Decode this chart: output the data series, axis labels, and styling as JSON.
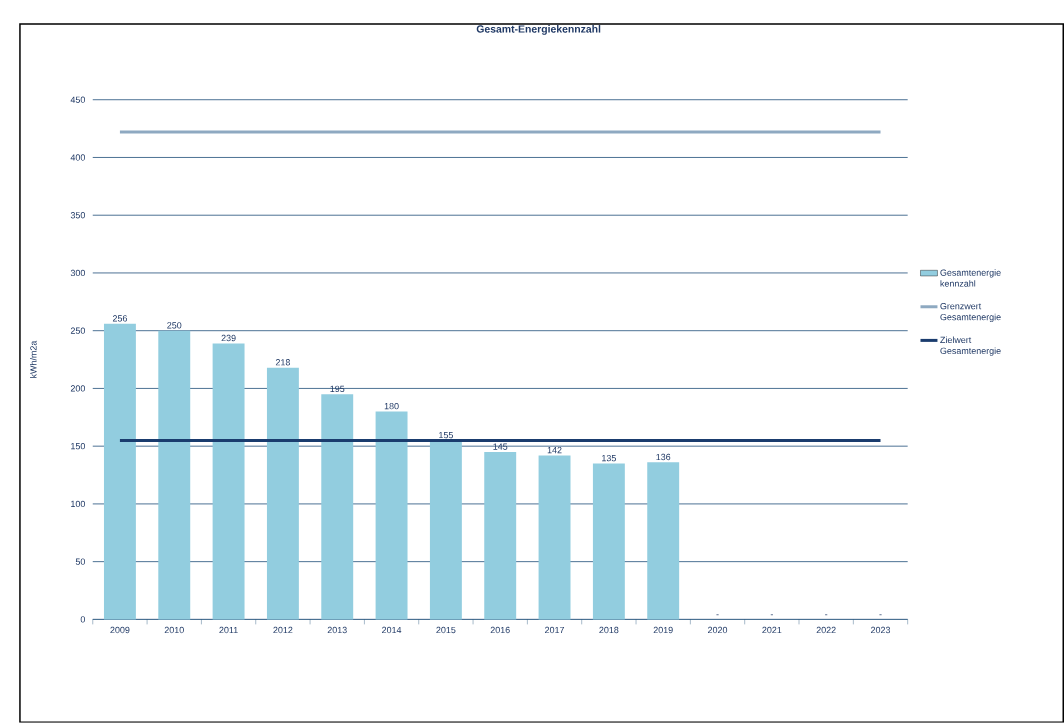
{
  "chart_data": {
    "type": "bar",
    "title": "Gesamt-Energiekennzahl",
    "ylabel": "kWh/m2a",
    "categories": [
      "2009",
      "2010",
      "2011",
      "2012",
      "2013",
      "2014",
      "2015",
      "2016",
      "2017",
      "2018",
      "2019",
      "2020",
      "2021",
      "2022",
      "2023"
    ],
    "series": [
      {
        "name": "Gesamtenergie kennzahl",
        "color": "#92cddf",
        "values": [
          256,
          250,
          239,
          218,
          195,
          180,
          155,
          145,
          142,
          135,
          136,
          null,
          null,
          null,
          null
        ],
        "value_labels": [
          "256",
          "250",
          "239",
          "218",
          "195",
          "180",
          "155",
          "145",
          "142",
          "135",
          "136",
          "-",
          "-",
          "-",
          "-"
        ]
      },
      {
        "name": "Grenzwert Gesamtenergie",
        "type": "line",
        "color": "#8ea9c1",
        "values": [
          422,
          422,
          422,
          422,
          422,
          422,
          422,
          422,
          422,
          422,
          422,
          422,
          422,
          422,
          422
        ]
      },
      {
        "name": "Zielwert Gesamtenergie",
        "type": "line",
        "color": "#1a3c6e",
        "values": [
          155,
          155,
          155,
          155,
          155,
          155,
          155,
          155,
          155,
          155,
          155,
          155,
          155,
          155,
          155
        ]
      }
    ],
    "ylim": [
      0,
      450
    ],
    "yticks": [
      0,
      50,
      100,
      150,
      200,
      250,
      300,
      350,
      400,
      450
    ],
    "grid": "y",
    "legend": "right",
    "marker": "none"
  }
}
